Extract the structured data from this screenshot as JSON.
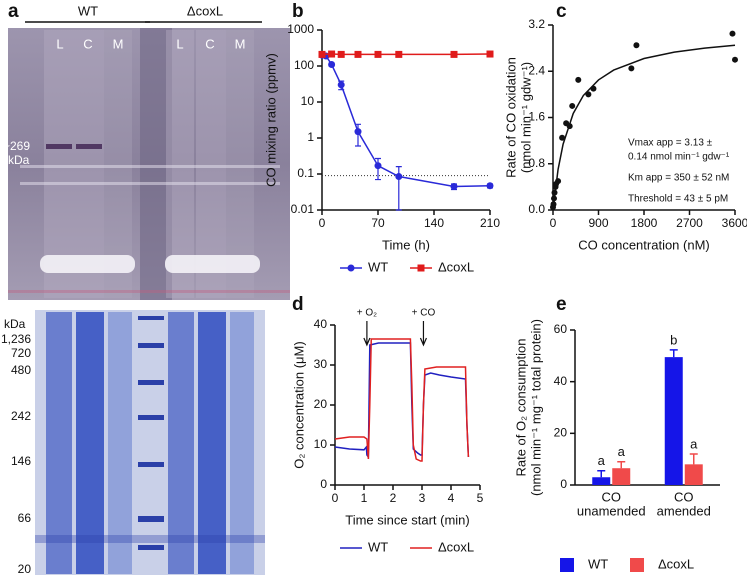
{
  "gel": {
    "panel_label": "a",
    "groups": [
      "WT",
      "ΔcoxL"
    ],
    "lanes": [
      "L",
      "C",
      "M",
      "L",
      "C",
      "M"
    ],
    "band_label": [
      "~269",
      "kDa"
    ],
    "ladder_title": "kDa",
    "ladder_labels": [
      "1,236",
      "720",
      "480",
      "242",
      "146",
      "66",
      "20"
    ]
  },
  "chart_data": [
    {
      "type": "line",
      "panel_label": "b",
      "xlabel": "Time (h)",
      "ylabel": "CO mixing ratio (ppmv)",
      "xlim": [
        0,
        210
      ],
      "xticks": [
        0,
        70,
        140,
        210
      ],
      "ylim": [
        0.01,
        1000
      ],
      "yticks": [
        0.01,
        0.1,
        1,
        10,
        100,
        1000
      ],
      "log_y": true,
      "threshold_line": 0.09,
      "series": [
        {
          "name": "WT",
          "color": "#2a2ad8",
          "marker": "circle",
          "x": [
            0,
            5,
            12,
            24,
            45,
            70,
            96,
            165,
            210
          ],
          "values": [
            200,
            190,
            110,
            30,
            1.5,
            0.17,
            0.085,
            0.045,
            0.047
          ],
          "errors": [
            0,
            0,
            10,
            8,
            0.9,
            0.1,
            0.075,
            0.008,
            0.006
          ]
        },
        {
          "name": "ΔcoxL",
          "color": "#e01b1b",
          "marker": "square",
          "x": [
            0,
            12,
            24,
            45,
            70,
            96,
            165,
            210
          ],
          "values": [
            210,
            215,
            210,
            210,
            210,
            210,
            210,
            215
          ]
        }
      ]
    },
    {
      "type": "scatter",
      "panel_label": "c",
      "xlabel": "CO concentration (nM)",
      "ylabel": [
        "Rate of CO oxidation",
        "(nmol min⁻¹ gdw⁻¹)"
      ],
      "xlim": [
        0,
        3600
      ],
      "xticks": [
        0,
        900,
        1800,
        2700,
        3600
      ],
      "ylim": [
        0,
        3.2
      ],
      "yticks": [
        {
          "value": 0,
          "label": "0.0"
        },
        0.8,
        1.6,
        2.4,
        3.2
      ],
      "color": "#111111",
      "x": [
        0,
        10,
        20,
        30,
        50,
        60,
        100,
        180,
        260,
        330,
        380,
        500,
        700,
        800,
        1550,
        1650,
        3550,
        3600
      ],
      "values": [
        0.05,
        0.1,
        0.2,
        0.3,
        0.4,
        0.45,
        0.5,
        1.25,
        1.5,
        1.45,
        1.8,
        2.25,
        2.0,
        2.1,
        2.45,
        2.85,
        3.05,
        2.6
      ],
      "fit": {
        "x": [
          0,
          100,
          200,
          400,
          600,
          900,
          1200,
          1800,
          2400,
          3000,
          3600
        ],
        "values": [
          0,
          0.7,
          1.14,
          1.67,
          1.98,
          2.25,
          2.42,
          2.62,
          2.73,
          2.8,
          2.85
        ]
      },
      "annotations": [
        "Vmax app = 3.13 ±",
        "0.14 nmol min⁻¹ gdw⁻¹",
        "Km app = 350 ± 52 nM",
        "Threshold = 43 ± 5 pM"
      ]
    },
    {
      "type": "line",
      "panel_label": "d",
      "xlabel": "Time since start (min)",
      "ylabel": "O₂ concentration (μM)",
      "xlim": [
        0,
        5
      ],
      "xticks": [
        0,
        1,
        2,
        3,
        4,
        5
      ],
      "ylim": [
        0,
        40
      ],
      "yticks": [
        0,
        10,
        20,
        30,
        40
      ],
      "annotations": [
        {
          "text": "+ O₂",
          "x": 1.1
        },
        {
          "text": "+ CO",
          "x": 3.05
        }
      ],
      "series": [
        {
          "name": "WT",
          "color": "#2020c0",
          "x": [
            0,
            0.5,
            1.0,
            1.08,
            1.1,
            1.15,
            1.2,
            1.5,
            2.0,
            2.6,
            2.65,
            2.7,
            2.85,
            2.95,
            3.0,
            3.05,
            3.1,
            3.3,
            3.6,
            4.0,
            4.5,
            4.55,
            4.6
          ],
          "values": [
            9.5,
            9,
            8.8,
            9.5,
            7.5,
            7,
            35,
            35.5,
            35.5,
            35.5,
            20,
            9,
            8,
            7.5,
            7.5,
            20,
            27.5,
            28,
            27.5,
            27,
            26.5,
            15,
            7
          ]
        },
        {
          "name": "ΔcoxL",
          "color": "#e02020",
          "x": [
            0,
            0.5,
            1.0,
            1.1,
            1.15,
            1.2,
            1.25,
            1.5,
            2.0,
            2.6,
            2.65,
            2.7,
            2.8,
            2.95,
            3.0,
            3.05,
            3.1,
            3.5,
            4.0,
            4.5,
            4.55,
            4.6
          ],
          "values": [
            11.5,
            12,
            12,
            11.5,
            6.5,
            20,
            36.5,
            36.5,
            36.5,
            36.5,
            25,
            10,
            6.5,
            6,
            6,
            20,
            29,
            29.5,
            29.5,
            29.5,
            15,
            7
          ]
        }
      ]
    },
    {
      "type": "bar",
      "panel_label": "e",
      "ylabel": [
        "Rate of O₂ consumption",
        "(nmol min⁻¹ mg⁻¹ total protein)"
      ],
      "categories": [
        [
          "CO",
          "unamended"
        ],
        [
          "CO",
          "amended"
        ]
      ],
      "ylim": [
        0,
        60
      ],
      "yticks": [
        0,
        20,
        40,
        60
      ],
      "series": [
        {
          "name": "WT",
          "color": "#1515e8",
          "values": [
            3,
            49.5
          ],
          "errors": [
            2.5,
            2.8
          ],
          "significance": [
            "a",
            "b"
          ]
        },
        {
          "name": "ΔcoxL",
          "color": "#f04a4a",
          "values": [
            6.5,
            8
          ],
          "errors": [
            2.5,
            4
          ],
          "significance": [
            "a",
            "a"
          ]
        }
      ]
    }
  ]
}
